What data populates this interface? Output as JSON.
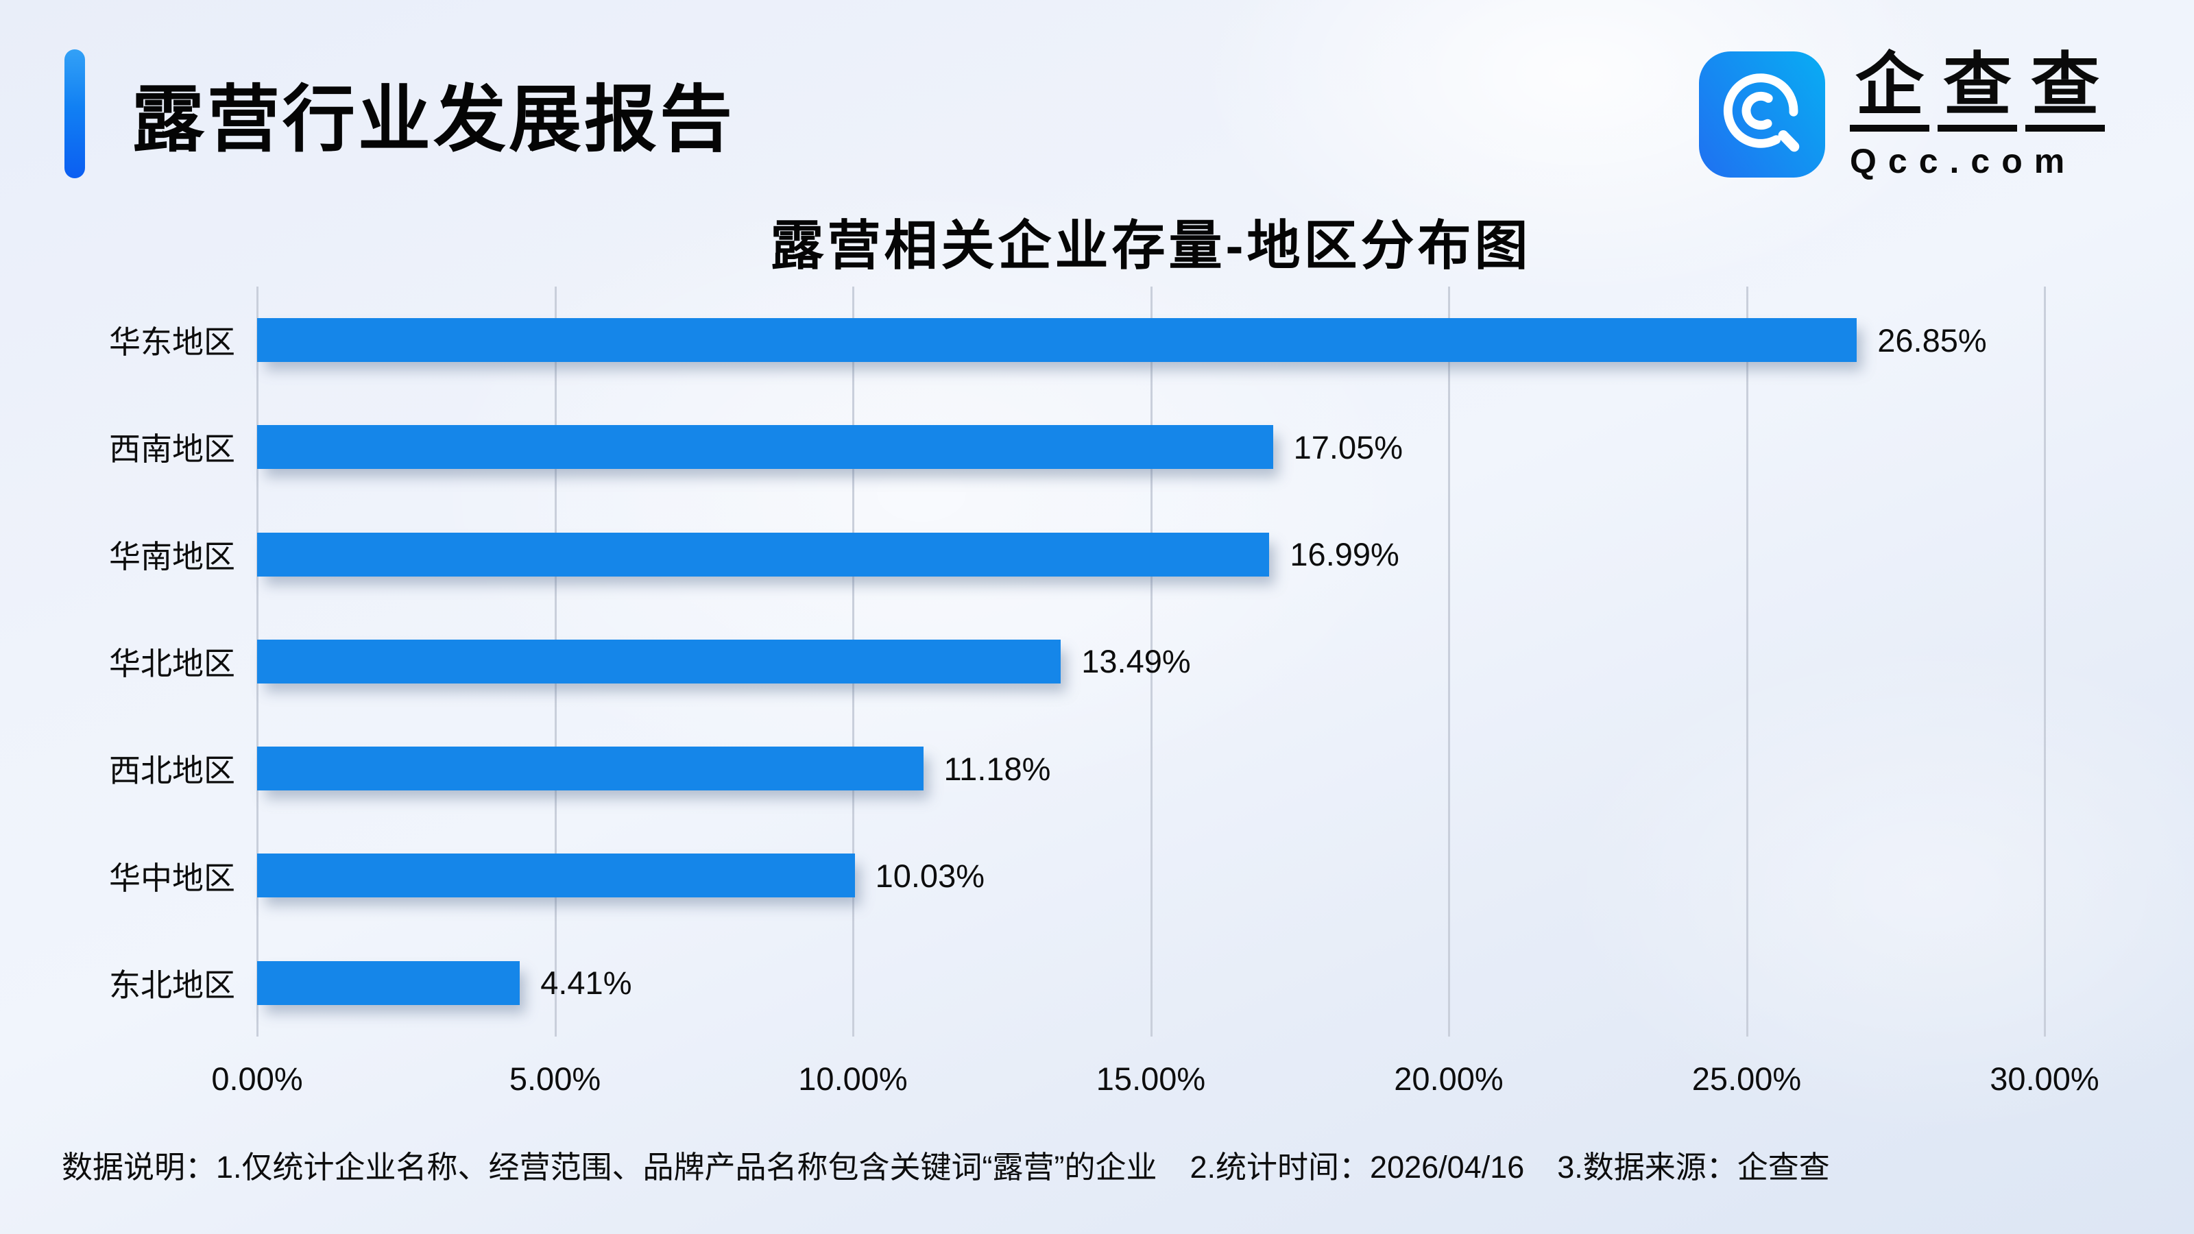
{
  "header": {
    "title": "露营行业发展报告"
  },
  "logo": {
    "icon": "qcc-magnifier-icon",
    "chars": [
      "企",
      "查",
      "查"
    ],
    "domain": "Qcc.com"
  },
  "chart_data": {
    "type": "bar",
    "orientation": "horizontal",
    "title": "露营相关企业存量-地区分布图",
    "categories": [
      "华东地区",
      "西南地区",
      "华南地区",
      "华北地区",
      "西北地区",
      "华中地区",
      "东北地区"
    ],
    "values": [
      26.85,
      17.05,
      16.99,
      13.49,
      11.18,
      10.03,
      4.41
    ],
    "value_labels": [
      "26.85%",
      "17.05%",
      "16.99%",
      "13.49%",
      "11.18%",
      "10.03%",
      "4.41%"
    ],
    "x_ticks": [
      "0.00%",
      "5.00%",
      "10.00%",
      "15.00%",
      "20.00%",
      "25.00%",
      "30.00%"
    ],
    "xlim": [
      0,
      30
    ],
    "grid": true,
    "legend": "none",
    "bar_color": "#1586E9"
  },
  "colors": {
    "bar": "#1586E9",
    "accent_top": "#33A1F6",
    "accent_bottom": "#0B5EF2",
    "logo_gradient_start": "#1E74F1",
    "logo_gradient_end": "#0AA9F3",
    "gridline": "#C9CFDB",
    "text": "#0D0D0D"
  },
  "footer": {
    "parts": [
      "数据说明：1.仅统计企业名称、经营范围、品牌产品名称包含关键词“露营”的企业",
      "2.统计时间：2026/04/16",
      "3.数据来源：企查查"
    ]
  }
}
